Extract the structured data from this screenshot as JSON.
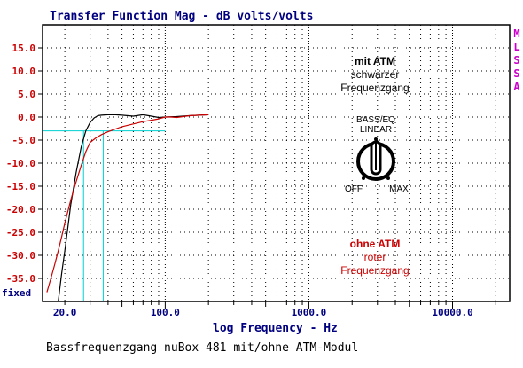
{
  "chart_data": {
    "type": "line",
    "title": "Transfer Function Mag - dB volts/volts",
    "xlabel": "log Frequency - Hz",
    "ylabel": "",
    "x_scale": "log",
    "xlim": [
      14,
      25000
    ],
    "ylim": [
      -40,
      20
    ],
    "x_ticks": [
      {
        "value": 20,
        "label": "20.0"
      },
      {
        "value": 100,
        "label": "100.0"
      },
      {
        "value": 1000,
        "label": "1000.0"
      },
      {
        "value": 10000,
        "label": "10000.0"
      }
    ],
    "y_ticks": [
      {
        "value": 15,
        "label": "15.0"
      },
      {
        "value": 10,
        "label": "10.0"
      },
      {
        "value": 5,
        "label": "5.0"
      },
      {
        "value": 0,
        "label": "0.0"
      },
      {
        "value": -5,
        "label": "-5.0"
      },
      {
        "value": -10,
        "label": "-10.0"
      },
      {
        "value": -15,
        "label": "-15.0"
      },
      {
        "value": -20,
        "label": "-20.0"
      },
      {
        "value": -25,
        "label": "-25.0"
      },
      {
        "value": -30,
        "label": "-30.0"
      },
      {
        "value": -35,
        "label": "-35.0"
      }
    ],
    "y_bottom_label": "fixed",
    "grid": true,
    "series": [
      {
        "color": "#000000",
        "x": [
          18,
          19,
          20,
          21,
          22,
          24,
          26,
          28,
          30,
          32,
          34,
          36,
          40,
          45,
          50,
          60,
          70,
          80,
          90,
          100,
          120,
          150,
          200
        ],
        "y": [
          -40,
          -34,
          -29,
          -24,
          -19,
          -12,
          -6.5,
          -3,
          -1.2,
          -0.2,
          0.3,
          0.4,
          0.5,
          0.5,
          0.4,
          0.2,
          0.5,
          0.2,
          -0.1,
          0,
          0.1,
          0.3,
          0.5
        ]
      },
      {
        "color": "#cc0000",
        "x": [
          15,
          16,
          17,
          18,
          19,
          20,
          22,
          24,
          26,
          28,
          30,
          33,
          36,
          40,
          45,
          50,
          60,
          70,
          80,
          90,
          100,
          110,
          120,
          150,
          200
        ],
        "y": [
          -38,
          -35,
          -32,
          -29,
          -26,
          -23,
          -18,
          -14,
          -10.5,
          -7.5,
          -5.5,
          -4.5,
          -3.8,
          -3.2,
          -2.6,
          -2.1,
          -1.5,
          -1,
          -0.7,
          -0.4,
          0,
          0,
          -0.1,
          0.3,
          0.5
        ]
      }
    ],
    "reference_lines": [
      {
        "color": "#00d0d0",
        "axis": "y",
        "value": -3,
        "from": 14,
        "to": 100
      },
      {
        "color": "#00d0d0",
        "axis": "x",
        "value": 27,
        "from": -40,
        "to": -3
      },
      {
        "color": "#00d0d0",
        "axis": "x",
        "value": 37,
        "from": -40,
        "to": -3
      }
    ],
    "annotations": {
      "black": {
        "title": "mit ATM",
        "lines": [
          "schwarzer",
          "Frequenzgang"
        ],
        "color": "#000000"
      },
      "red": {
        "title": "ohne ATM",
        "lines": [
          "roter",
          "Frequenzgang"
        ],
        "color": "#cc0000"
      },
      "knob": {
        "top": [
          "BASS/EQ",
          "LINEAR"
        ],
        "left": "OFF",
        "right": "MAX"
      }
    },
    "side_label": {
      "letters": [
        "M",
        "L",
        "S",
        "S",
        "A"
      ],
      "color": "#cc00cc"
    },
    "caption": "Bassfrequenzgang nuBox 481 mit/ohne ATM-Modul",
    "colors": {
      "title": "#000080",
      "axis_text": "#000080",
      "tick_text": "#cc0000",
      "grid": "#000000"
    }
  }
}
